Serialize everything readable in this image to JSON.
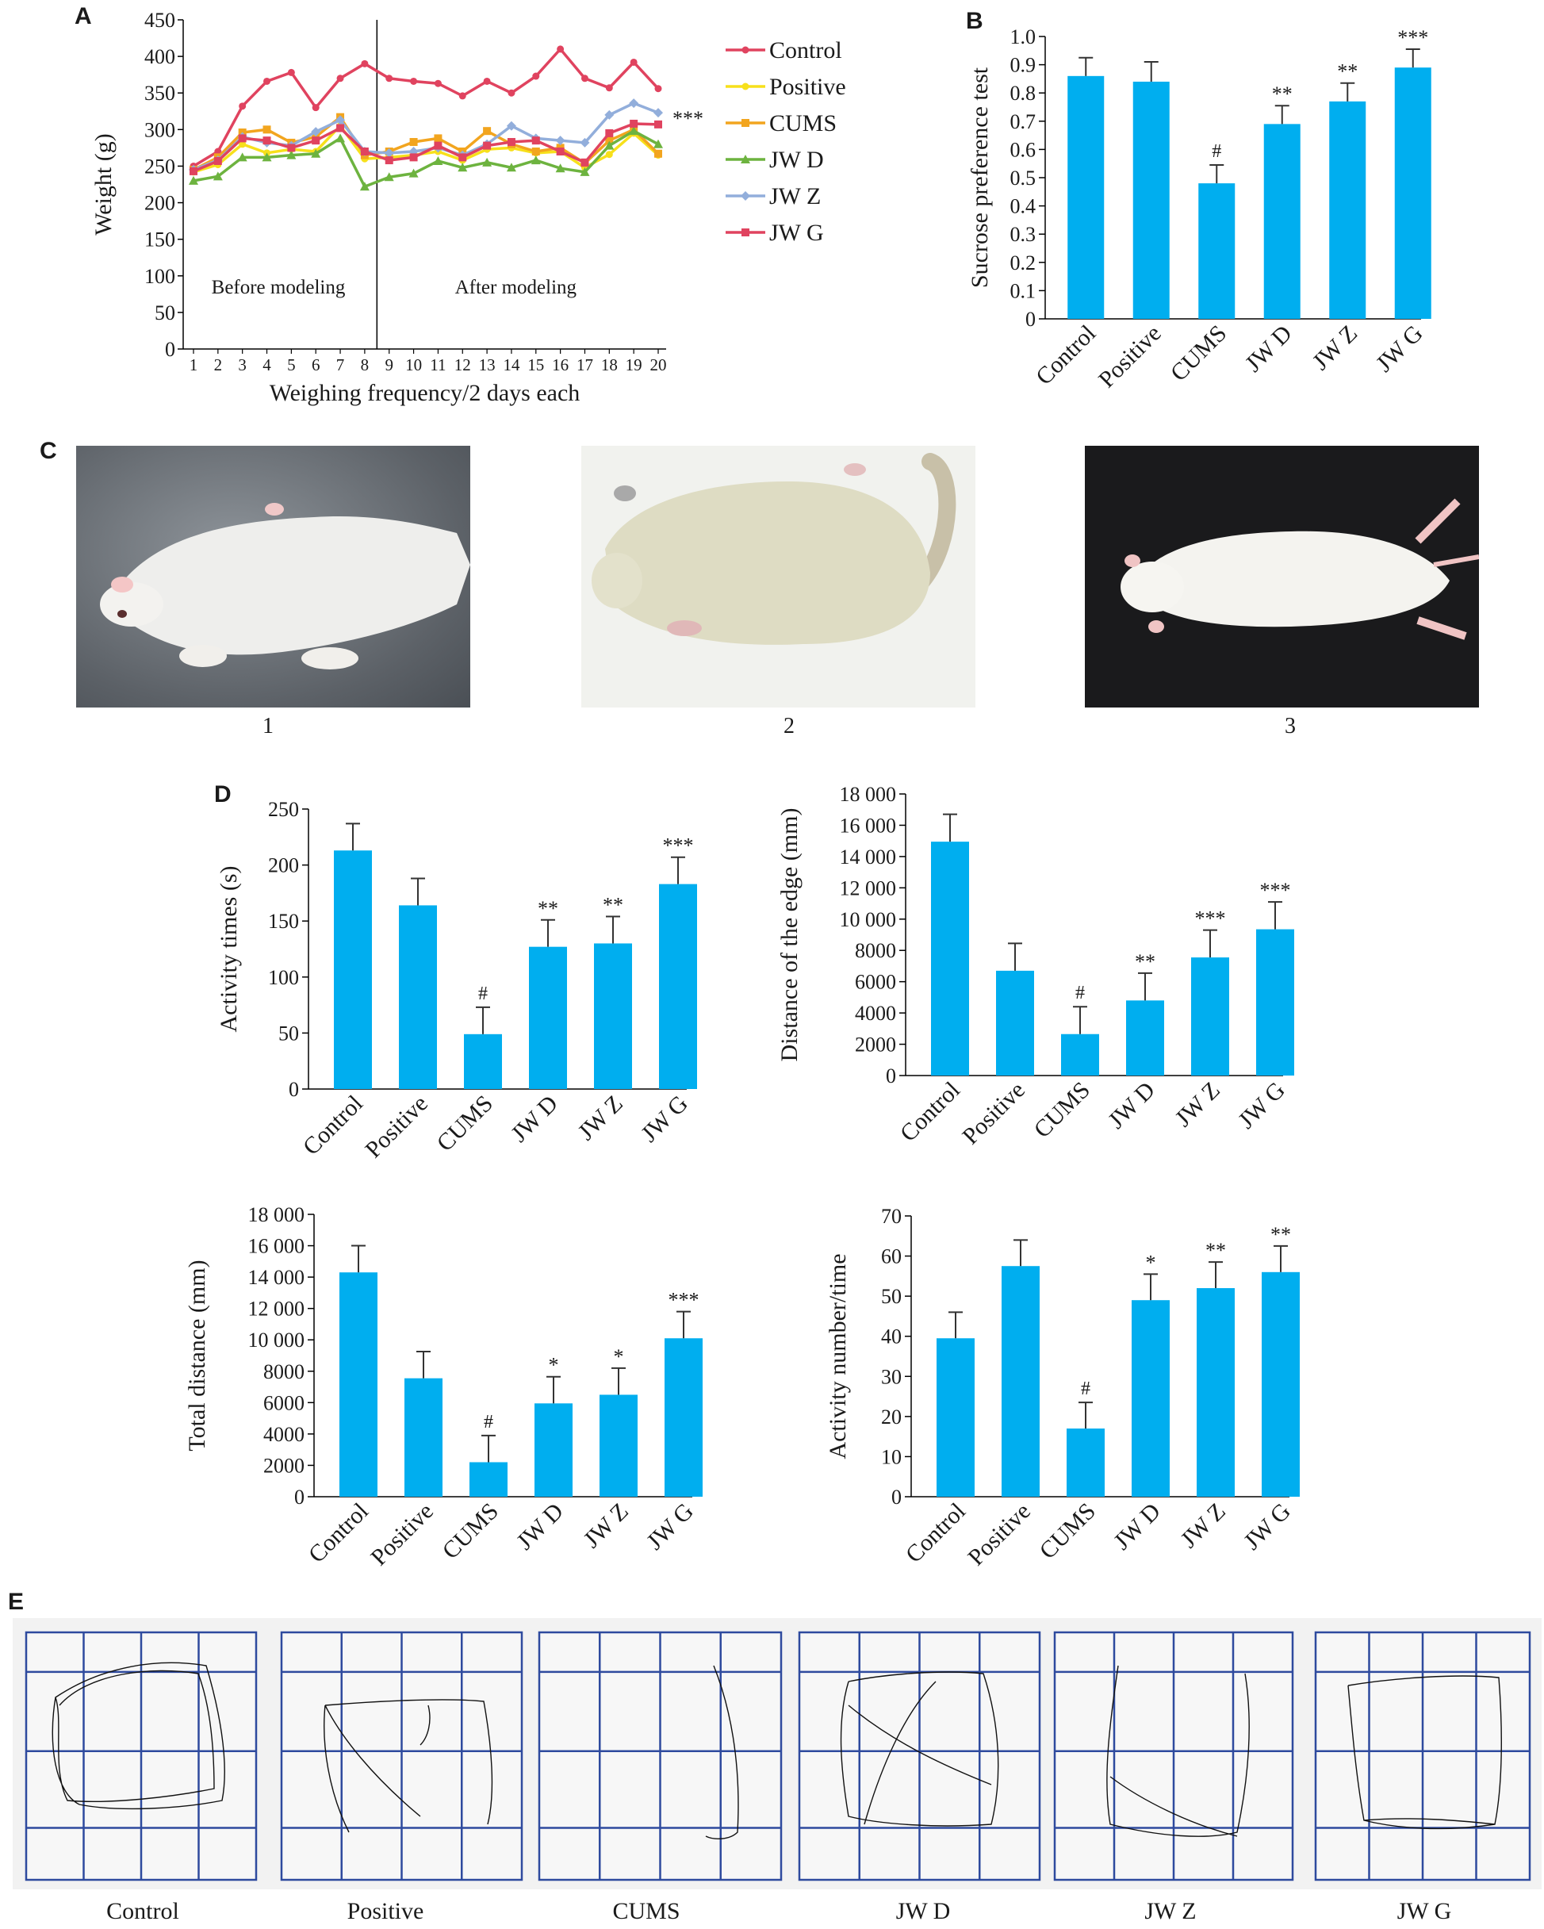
{
  "panels": {
    "A": "A",
    "B": "B",
    "C": "C",
    "D": "D",
    "E": "E"
  },
  "colors": {
    "bar": "#00AEEF",
    "grid_line": "#2E4A9E",
    "track_bg": "#F2F2F2"
  },
  "chart_data": [
    {
      "id": "A",
      "type": "line",
      "xlabel": "Weighing frequency/2 days each",
      "ylabel": "Weight (g)",
      "x": [
        1,
        2,
        3,
        4,
        5,
        6,
        7,
        8,
        9,
        10,
        11,
        12,
        13,
        14,
        15,
        16,
        17,
        18,
        19,
        20
      ],
      "ylim": [
        0,
        450
      ],
      "yticks": [
        0,
        50,
        100,
        150,
        200,
        250,
        300,
        350,
        400,
        450
      ],
      "annotations": {
        "before": "Before modeling",
        "after": "After modeling",
        "sig": "***",
        "divider_after_x": 8.5
      },
      "legend_placement": "right",
      "series": [
        {
          "name": "Control",
          "color": "#E0435F",
          "marker": "circle",
          "values": [
            250,
            270,
            332,
            366,
            378,
            330,
            370,
            390,
            370,
            366,
            363,
            346,
            366,
            350,
            373,
            410,
            370,
            357,
            392,
            356
          ]
        },
        {
          "name": "Positive",
          "color": "#F7E01B",
          "marker": "circle",
          "values": [
            242,
            252,
            280,
            268,
            273,
            270,
            305,
            260,
            262,
            265,
            270,
            258,
            273,
            275,
            268,
            270,
            248,
            266,
            295,
            265
          ]
        },
        {
          "name": "CUMS",
          "color": "#F2A51F",
          "marker": "square",
          "values": [
            245,
            262,
            296,
            300,
            282,
            290,
            317,
            265,
            270,
            283,
            288,
            270,
            298,
            280,
            270,
            275,
            254,
            285,
            300,
            267
          ]
        },
        {
          "name": "JW D",
          "color": "#6DB33F",
          "marker": "triangle",
          "values": [
            230,
            236,
            262,
            262,
            265,
            267,
            288,
            222,
            235,
            240,
            257,
            248,
            255,
            248,
            258,
            247,
            242,
            278,
            298,
            280
          ]
        },
        {
          "name": "JW Z",
          "color": "#92AEDB",
          "marker": "diamond",
          "values": [
            245,
            258,
            290,
            282,
            278,
            297,
            313,
            270,
            268,
            270,
            275,
            265,
            280,
            305,
            288,
            285,
            282,
            320,
            336,
            323
          ]
        },
        {
          "name": "JW G",
          "color": "#E0435F",
          "marker": "square",
          "values": [
            243,
            257,
            288,
            285,
            275,
            285,
            302,
            270,
            258,
            262,
            278,
            262,
            278,
            283,
            285,
            270,
            255,
            295,
            308,
            307
          ]
        }
      ]
    },
    {
      "id": "B",
      "type": "bar",
      "ylabel": "Sucrose preference test",
      "categories": [
        "Control",
        "Positive",
        "CUMS",
        "JW D",
        "JW Z",
        "JW G"
      ],
      "values": [
        0.86,
        0.84,
        0.48,
        0.69,
        0.77,
        0.89
      ],
      "errors": [
        0.065,
        0.07,
        0.065,
        0.065,
        0.065,
        0.065
      ],
      "sig": [
        "",
        "",
        "#",
        "**",
        "**",
        "***"
      ],
      "ylim": [
        0,
        1.0
      ],
      "yticks": [
        0,
        0.1,
        0.2,
        0.3,
        0.4,
        0.5,
        0.6,
        0.7,
        0.8,
        0.9,
        1.0
      ],
      "yticklabels": [
        "0",
        "0.1",
        "0.2",
        "0.3",
        "0.4",
        "0.5",
        "0.6",
        "0.7",
        "0.8",
        "0.9",
        "1.0"
      ]
    },
    {
      "id": "D1",
      "type": "bar",
      "ylabel": "Activity times (s)",
      "categories": [
        "Control",
        "Positive",
        "CUMS",
        "JW D",
        "JW Z",
        "JW G"
      ],
      "values": [
        213,
        164,
        49,
        127,
        130,
        183
      ],
      "errors": [
        24,
        24,
        24,
        24,
        24,
        24
      ],
      "sig": [
        "",
        "",
        "#",
        "**",
        "**",
        "***"
      ],
      "ylim": [
        0,
        250
      ],
      "yticks": [
        0,
        50,
        100,
        150,
        200,
        250
      ],
      "yticklabels": [
        "0",
        "50",
        "100",
        "150",
        "200",
        "250"
      ]
    },
    {
      "id": "D2",
      "type": "bar",
      "ylabel": "Distance of the edge (mm)",
      "categories": [
        "Control",
        "Positive",
        "CUMS",
        "JW D",
        "JW Z",
        "JW G"
      ],
      "values": [
        14950,
        6700,
        2650,
        4800,
        7550,
        9350
      ],
      "errors": [
        1750,
        1750,
        1750,
        1750,
        1750,
        1750
      ],
      "sig": [
        "",
        "",
        "#",
        "**",
        "***",
        "***"
      ],
      "ylim": [
        0,
        18000
      ],
      "yticks": [
        0,
        2000,
        4000,
        6000,
        8000,
        10000,
        12000,
        14000,
        16000,
        18000
      ],
      "yticklabels": [
        "0",
        "2000",
        "4000",
        "6000",
        "8000",
        "10 000",
        "12 000",
        "14 000",
        "16 000",
        "18 000"
      ]
    },
    {
      "id": "D3",
      "type": "bar",
      "ylabel": "Total distance (mm)",
      "categories": [
        "Control",
        "Positive",
        "CUMS",
        "JW D",
        "JW Z",
        "JW G"
      ],
      "values": [
        14300,
        7550,
        2200,
        5950,
        6500,
        10100
      ],
      "errors": [
        1700,
        1700,
        1700,
        1700,
        1700,
        1700
      ],
      "sig": [
        "",
        "",
        "#",
        "*",
        "*",
        "***"
      ],
      "ylim": [
        0,
        18000
      ],
      "yticks": [
        0,
        2000,
        4000,
        6000,
        8000,
        10000,
        12000,
        14000,
        16000,
        18000
      ],
      "yticklabels": [
        "0",
        "2000",
        "4000",
        "6000",
        "8000",
        "10 000",
        "12 000",
        "14 000",
        "16 000",
        "18 000"
      ]
    },
    {
      "id": "D4",
      "type": "bar",
      "ylabel": "Activity number/time",
      "categories": [
        "Control",
        "Positive",
        "CUMS",
        "JW D",
        "JW Z",
        "JW G"
      ],
      "values": [
        39.5,
        57.5,
        17,
        49,
        52,
        56
      ],
      "errors": [
        6.5,
        6.5,
        6.5,
        6.5,
        6.5,
        6.5
      ],
      "sig": [
        "",
        "",
        "#",
        "*",
        "**",
        "**"
      ],
      "ylim": [
        0,
        70
      ],
      "yticks": [
        0,
        10,
        20,
        30,
        40,
        50,
        60,
        70
      ],
      "yticklabels": [
        "0",
        "10",
        "20",
        "30",
        "40",
        "50",
        "60",
        "70"
      ]
    }
  ],
  "photos": {
    "captions": [
      "1",
      "2",
      "3"
    ]
  },
  "tracks": {
    "labels": [
      "Control",
      "Positive",
      "CUMS",
      "JW D",
      "JW Z",
      "JW G"
    ]
  }
}
